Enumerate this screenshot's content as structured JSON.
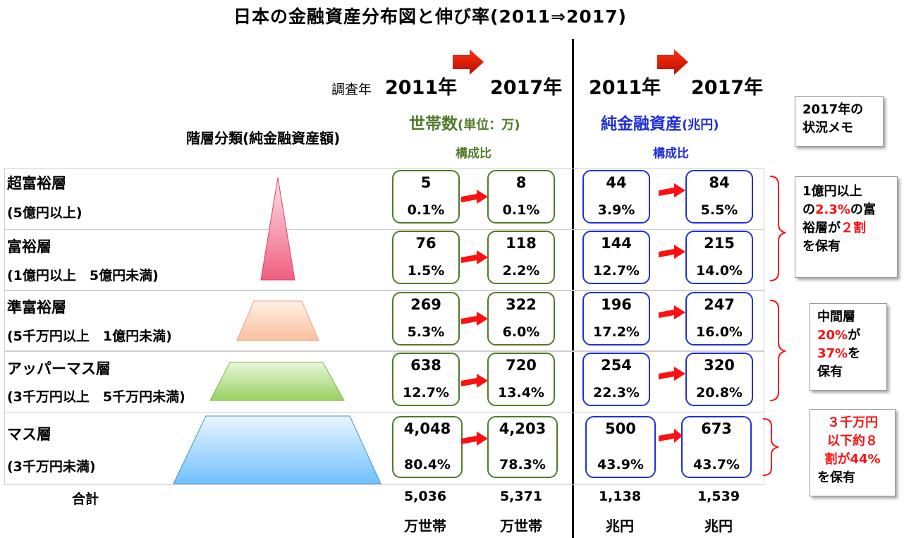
{
  "title": "日本の金融資産分布図と伸び率(2011⇒2017)",
  "survey_label": "調査年",
  "years": [
    "2011年",
    "2017年",
    "2011年",
    "2017年"
  ],
  "households_header": {
    "main": "世帯数",
    "unit": "(単位：万)"
  },
  "assets_header": {
    "main": "純金融資産",
    "unit": "(兆円)"
  },
  "ratio_label": "構成比",
  "category_header": "階層分類(純金融資産額)",
  "memo_header": "2017年の状況メモ",
  "tiers": [
    {
      "name": "超富裕層",
      "range": "(5億円以上)",
      "hh2011": "5",
      "hh2011p": "0.1%",
      "hh2017": "8",
      "hh2017p": "0.1%",
      "as2011": "44",
      "as2011p": "3.9%",
      "as2017": "84",
      "as2017p": "5.5%"
    },
    {
      "name": "富裕層",
      "range": "(1億円以上　5億円未満)",
      "hh2011": "76",
      "hh2011p": "1.5%",
      "hh2017": "118",
      "hh2017p": "2.2%",
      "as2011": "144",
      "as2011p": "12.7%",
      "as2017": "215",
      "as2017p": "14.0%"
    },
    {
      "name": "準富裕層",
      "range": "(5千万円以上　1億円未満)",
      "hh2011": "269",
      "hh2011p": "5.3%",
      "hh2017": "322",
      "hh2017p": "6.0%",
      "as2011": "196",
      "as2011p": "17.2%",
      "as2017": "247",
      "as2017p": "16.0%"
    },
    {
      "name": "アッパーマス層",
      "range": "(3千万円以上　5千万円未満)",
      "hh2011": "638",
      "hh2011p": "12.7%",
      "hh2017": "720",
      "hh2017p": "13.4%",
      "as2011": "254",
      "as2011p": "22.3%",
      "as2017": "320",
      "as2017p": "20.8%"
    },
    {
      "name": "マス層",
      "range": "(3千万円未満)",
      "hh2011": "4,048",
      "hh2011p": "80.4%",
      "hh2017": "4,203",
      "hh2017p": "78.3%",
      "as2011": "500",
      "as2011p": "43.9%",
      "as2017": "673",
      "as2017p": "43.7%"
    }
  ],
  "total": {
    "label": "合計",
    "hh2011": "5,036",
    "hh2017": "5,371",
    "as2011": "1,138",
    "as2017": "1,539",
    "hh_unit": "万世帯",
    "as_unit": "兆円"
  },
  "memos": [
    {
      "l1a": "1億円以上",
      "l2a": "の",
      "l2r": "2.3%",
      "l2b": "の富",
      "l3a": "裕層が",
      "l3r": "２割",
      "l4": "を保有"
    },
    {
      "l1": "中間層",
      "l2r": "20%",
      "l2b": "が",
      "l3r": "37%",
      "l3b": "を",
      "l4": "保有"
    },
    {
      "l1r": "３千万円",
      "l2r": "以下約８",
      "l3r": "割が44%",
      "l4": "を保有"
    }
  ],
  "colors": {
    "green": "#4f7a28",
    "blue": "#1f2fd9",
    "red": "#ff1010",
    "pink": "#f06080",
    "peach": "#f8c8a8",
    "lightgreen": "#a8d870",
    "lightblue": "#90cfff"
  }
}
